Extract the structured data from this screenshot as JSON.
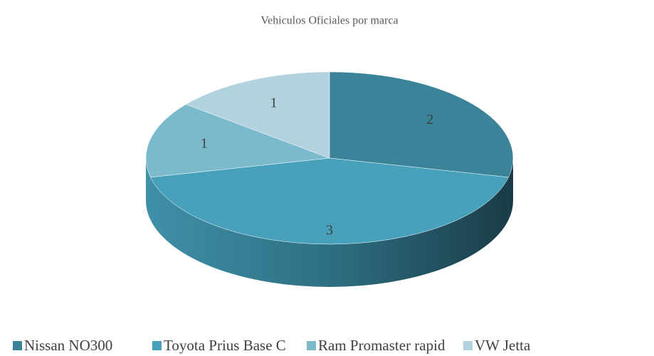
{
  "chart_data": {
    "type": "pie",
    "title": "Vehiculos Oficiales por marca",
    "categories": [
      "Nissan NO300",
      "Toyota Prius Base C",
      "Ram Promaster rapid",
      "VW Jetta"
    ],
    "values": [
      2,
      3,
      1,
      1
    ],
    "colors": [
      "#3a8399",
      "#47a1bb",
      "#7bb9cc",
      "#b2d3de"
    ],
    "legend": "bottom"
  }
}
